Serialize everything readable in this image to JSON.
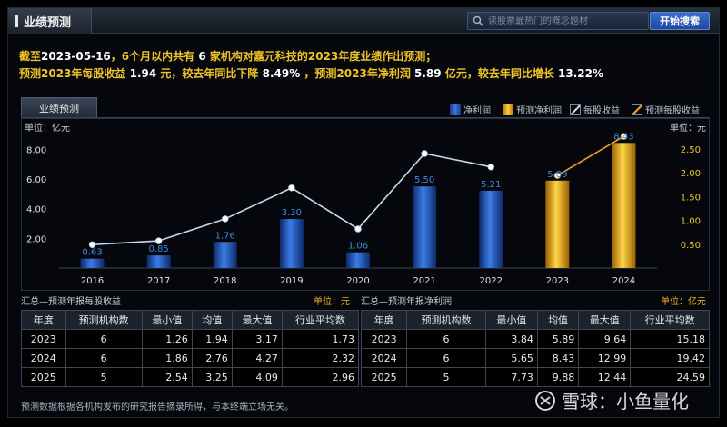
{
  "header": {
    "title": "业绩预测",
    "search_placeholder": "读股票最热门的概念题材",
    "search_button": "开始搜索"
  },
  "summary": {
    "line1_a": "截至",
    "date": "2023-05-16",
    "line1_b": "，6个月以内共有",
    "count": "6",
    "line1_c": "家机构对嘉元科技的2023年度业绩作出预测；",
    "line2_a": "预测2023年每股收益",
    "eps": "1.94",
    "line2_b": "元，较去年同比下降",
    "eps_chg": "8.49%",
    "line2_c": "，预测2023年净利润",
    "np": "5.89",
    "line2_d": "亿元，较去年同比增长",
    "np_chg": "13.22%"
  },
  "section_tab": "业绩预测",
  "legend": {
    "net_profit": "净利润",
    "forecast_net_profit": "预测净利润",
    "eps": "每股收益",
    "forecast_eps": "预测每股收益"
  },
  "chart_data": {
    "type": "bar",
    "categories": [
      "2016",
      "2017",
      "2018",
      "2019",
      "2020",
      "2021",
      "2022",
      "2023",
      "2024"
    ],
    "left_unit_label": "单位：亿元",
    "right_unit_label": "单位：元",
    "ylim_left": [
      0,
      9.0
    ],
    "yticks_left": [
      "2.00",
      "4.00",
      "6.00",
      "8.00"
    ],
    "ylim_right": [
      0,
      2.8
    ],
    "yticks_right": [
      "0.50",
      "1.00",
      "1.50",
      "2.00",
      "2.50"
    ],
    "net_profit": [
      0.63,
      0.85,
      1.76,
      3.3,
      1.06,
      5.5,
      5.21,
      null,
      null
    ],
    "net_profit_labels": [
      "0.63",
      "0.85",
      "1.76",
      "3.30",
      "1.06",
      "5.50",
      "5.21",
      "",
      ""
    ],
    "forecast_net_profit": [
      null,
      null,
      null,
      null,
      null,
      null,
      null,
      5.89,
      8.43
    ],
    "forecast_net_profit_labels": [
      "",
      "",
      "",
      "",
      "",
      "",
      "",
      "5.89",
      "8.43"
    ],
    "eps": [
      0.49,
      0.57,
      1.03,
      1.68,
      0.82,
      2.4,
      2.12,
      null,
      null
    ],
    "forecast_eps": [
      null,
      null,
      null,
      null,
      null,
      null,
      null,
      1.94,
      2.76
    ],
    "colors": {
      "net_profit": "#1f4fb4",
      "forecast_net_profit": "#f0a800",
      "eps": "#c8d8f0",
      "forecast_eps": "#f0a020",
      "label": "#3a8ee8",
      "tick_left": "#e0e0e0",
      "tick_right": "#f0c428"
    }
  },
  "eps_table": {
    "caption": "汇总—预测年报每股收益",
    "unit": "单位：元",
    "headers": [
      "年度",
      "预测机构数",
      "最小值",
      "均值",
      "最大值",
      "行业平均数"
    ],
    "rows": [
      [
        "2023",
        "6",
        "1.26",
        "1.94",
        "3.17",
        "1.73"
      ],
      [
        "2024",
        "6",
        "1.86",
        "2.76",
        "4.27",
        "2.32"
      ],
      [
        "2025",
        "5",
        "2.54",
        "3.25",
        "4.09",
        "2.96"
      ]
    ]
  },
  "np_table": {
    "caption": "汇总—预测年报净利润",
    "unit": "单位：亿元",
    "headers": [
      "年度",
      "预测机构数",
      "最小值",
      "均值",
      "最大值",
      "行业平均数"
    ],
    "rows": [
      [
        "2023",
        "6",
        "3.84",
        "5.89",
        "9.64",
        "15.18"
      ],
      [
        "2024",
        "6",
        "5.65",
        "8.43",
        "12.99",
        "19.42"
      ],
      [
        "2025",
        "5",
        "7.73",
        "9.88",
        "12.44",
        "24.59"
      ]
    ]
  },
  "footnote": "预测数据根据各机构发布的研究报告摘录所得，与本终端立场无关。",
  "watermark": {
    "text": "雪球：小鱼量化"
  }
}
